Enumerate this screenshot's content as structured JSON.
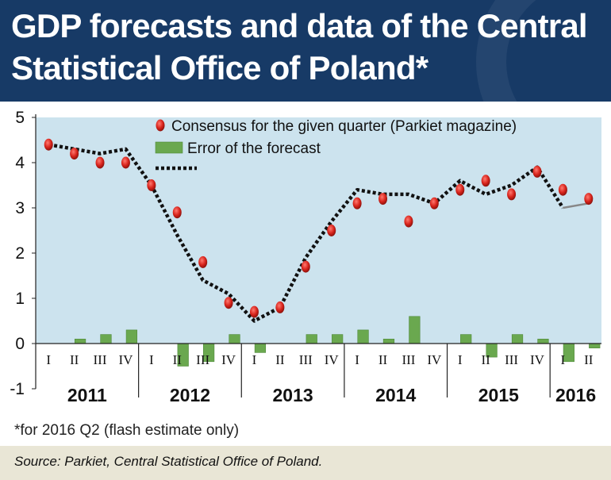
{
  "title": "GDP forecasts and data of the Central Statistical Office of Poland*",
  "footnote": "*for 2016 Q2 (flash estimate only)",
  "source": "Source: Parkiet, Central Statistical Office of Poland.",
  "chart_data": {
    "type": "bar",
    "ylim": [
      -1,
      5
    ],
    "yticks": [
      "-1",
      "0",
      "1",
      "2",
      "3",
      "4",
      "5"
    ],
    "quarters": [
      "I",
      "II",
      "III",
      "IV",
      "I",
      "II",
      "III",
      "IV",
      "I",
      "II",
      "III",
      "IV",
      "I",
      "II",
      "III",
      "IV",
      "I",
      "II",
      "III",
      "IV",
      "I",
      "II"
    ],
    "years": [
      {
        "label": "2011",
        "span": 4
      },
      {
        "label": "2012",
        "span": 4
      },
      {
        "label": "2013",
        "span": 4
      },
      {
        "label": "2014",
        "span": 4
      },
      {
        "label": "2015",
        "span": 4
      },
      {
        "label": "2016",
        "span": 2
      }
    ],
    "series": [
      {
        "name": "Consensus for the given quarter (Parkiet magazine)",
        "kind": "points",
        "values": [
          4.4,
          4.2,
          4.0,
          4.0,
          3.5,
          2.9,
          1.8,
          0.9,
          0.7,
          0.8,
          1.7,
          2.5,
          3.1,
          3.2,
          2.7,
          3.1,
          3.4,
          3.6,
          3.3,
          3.8,
          3.4,
          3.2
        ]
      },
      {
        "name": "Error of the forecast",
        "kind": "bars",
        "values": [
          0.0,
          0.1,
          0.2,
          0.3,
          0.0,
          -0.5,
          -0.4,
          0.2,
          -0.2,
          0.0,
          0.2,
          0.2,
          0.3,
          0.1,
          0.6,
          0.0,
          0.2,
          -0.3,
          0.2,
          0.1,
          -0.4,
          -0.1
        ]
      },
      {
        "name": "",
        "kind": "line",
        "values": [
          4.4,
          4.3,
          4.2,
          4.3,
          3.5,
          2.4,
          1.4,
          1.1,
          0.5,
          0.8,
          1.9,
          2.7,
          3.4,
          3.3,
          3.3,
          3.1,
          3.6,
          3.3,
          3.5,
          3.9,
          3.0,
          3.1
        ]
      }
    ],
    "grid": false,
    "legend": "top-center",
    "colors": {
      "points": "#d8241c",
      "bars": "#6aa84f",
      "line": "#111111",
      "plot_background": "#cce3ee",
      "last_segment": "#888888"
    }
  }
}
